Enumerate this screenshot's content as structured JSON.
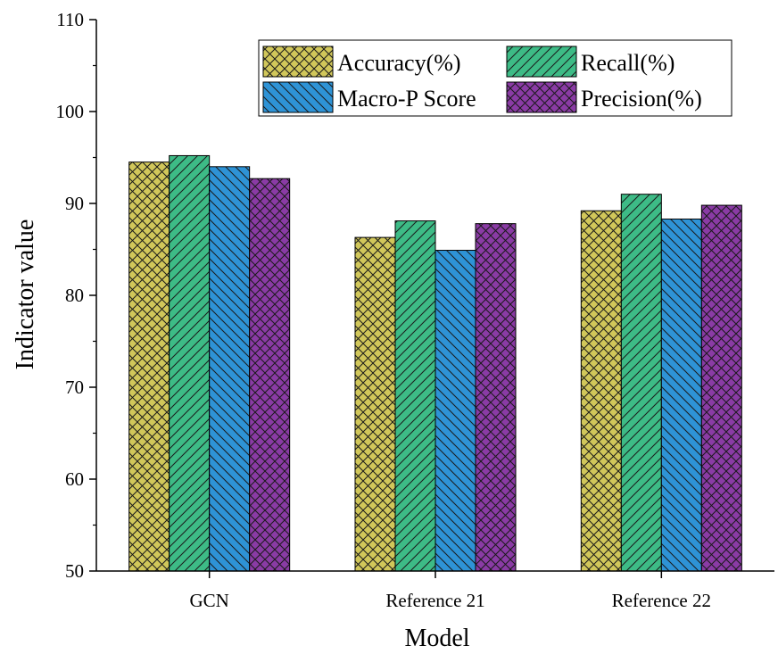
{
  "chart_data": {
    "type": "bar",
    "title": "",
    "xlabel": "Model",
    "ylabel": "Indicator value",
    "categories": [
      "GCN",
      "Reference 21",
      "Reference 22"
    ],
    "ylim": [
      50,
      110
    ],
    "yticks": [
      50,
      60,
      70,
      80,
      90,
      100,
      110
    ],
    "legend": "top-right",
    "grid": false,
    "series": [
      {
        "name": "Accuracy(%)",
        "values": [
          94.5,
          86.3,
          89.2
        ],
        "color": "#d1c75a",
        "pattern": "crosshatch"
      },
      {
        "name": "Recall(%)",
        "values": [
          95.2,
          88.1,
          91.0
        ],
        "color": "#3dbb86",
        "pattern": "diagonal-up"
      },
      {
        "name": "Macro-P Score",
        "values": [
          94.0,
          84.9,
          88.3
        ],
        "color": "#2e93d6",
        "pattern": "diagonal-down"
      },
      {
        "name": "Precision(%)",
        "values": [
          92.7,
          87.8,
          89.8
        ],
        "color": "#8a3ba5",
        "pattern": "crosshatch"
      }
    ]
  }
}
